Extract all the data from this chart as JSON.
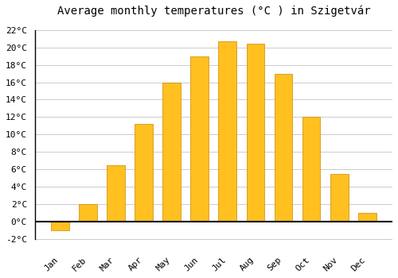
{
  "title": "Average monthly temperatures (°C ) in Szigetvár",
  "months": [
    "Jan",
    "Feb",
    "Mar",
    "Apr",
    "May",
    "Jun",
    "Jul",
    "Aug",
    "Sep",
    "Oct",
    "Nov",
    "Dec"
  ],
  "values": [
    -1.0,
    2.0,
    6.5,
    11.2,
    16.0,
    19.0,
    20.7,
    20.4,
    17.0,
    12.0,
    5.5,
    1.0
  ],
  "bar_color": "#FFC020",
  "bar_edge_color": "#CC8800",
  "background_color": "#ffffff",
  "grid_color": "#cccccc",
  "ylim": [
    -3,
    23
  ],
  "yticks": [
    -2,
    0,
    2,
    4,
    6,
    8,
    10,
    12,
    14,
    16,
    18,
    20,
    22
  ],
  "title_fontsize": 10,
  "tick_fontsize": 8,
  "font_family": "monospace"
}
